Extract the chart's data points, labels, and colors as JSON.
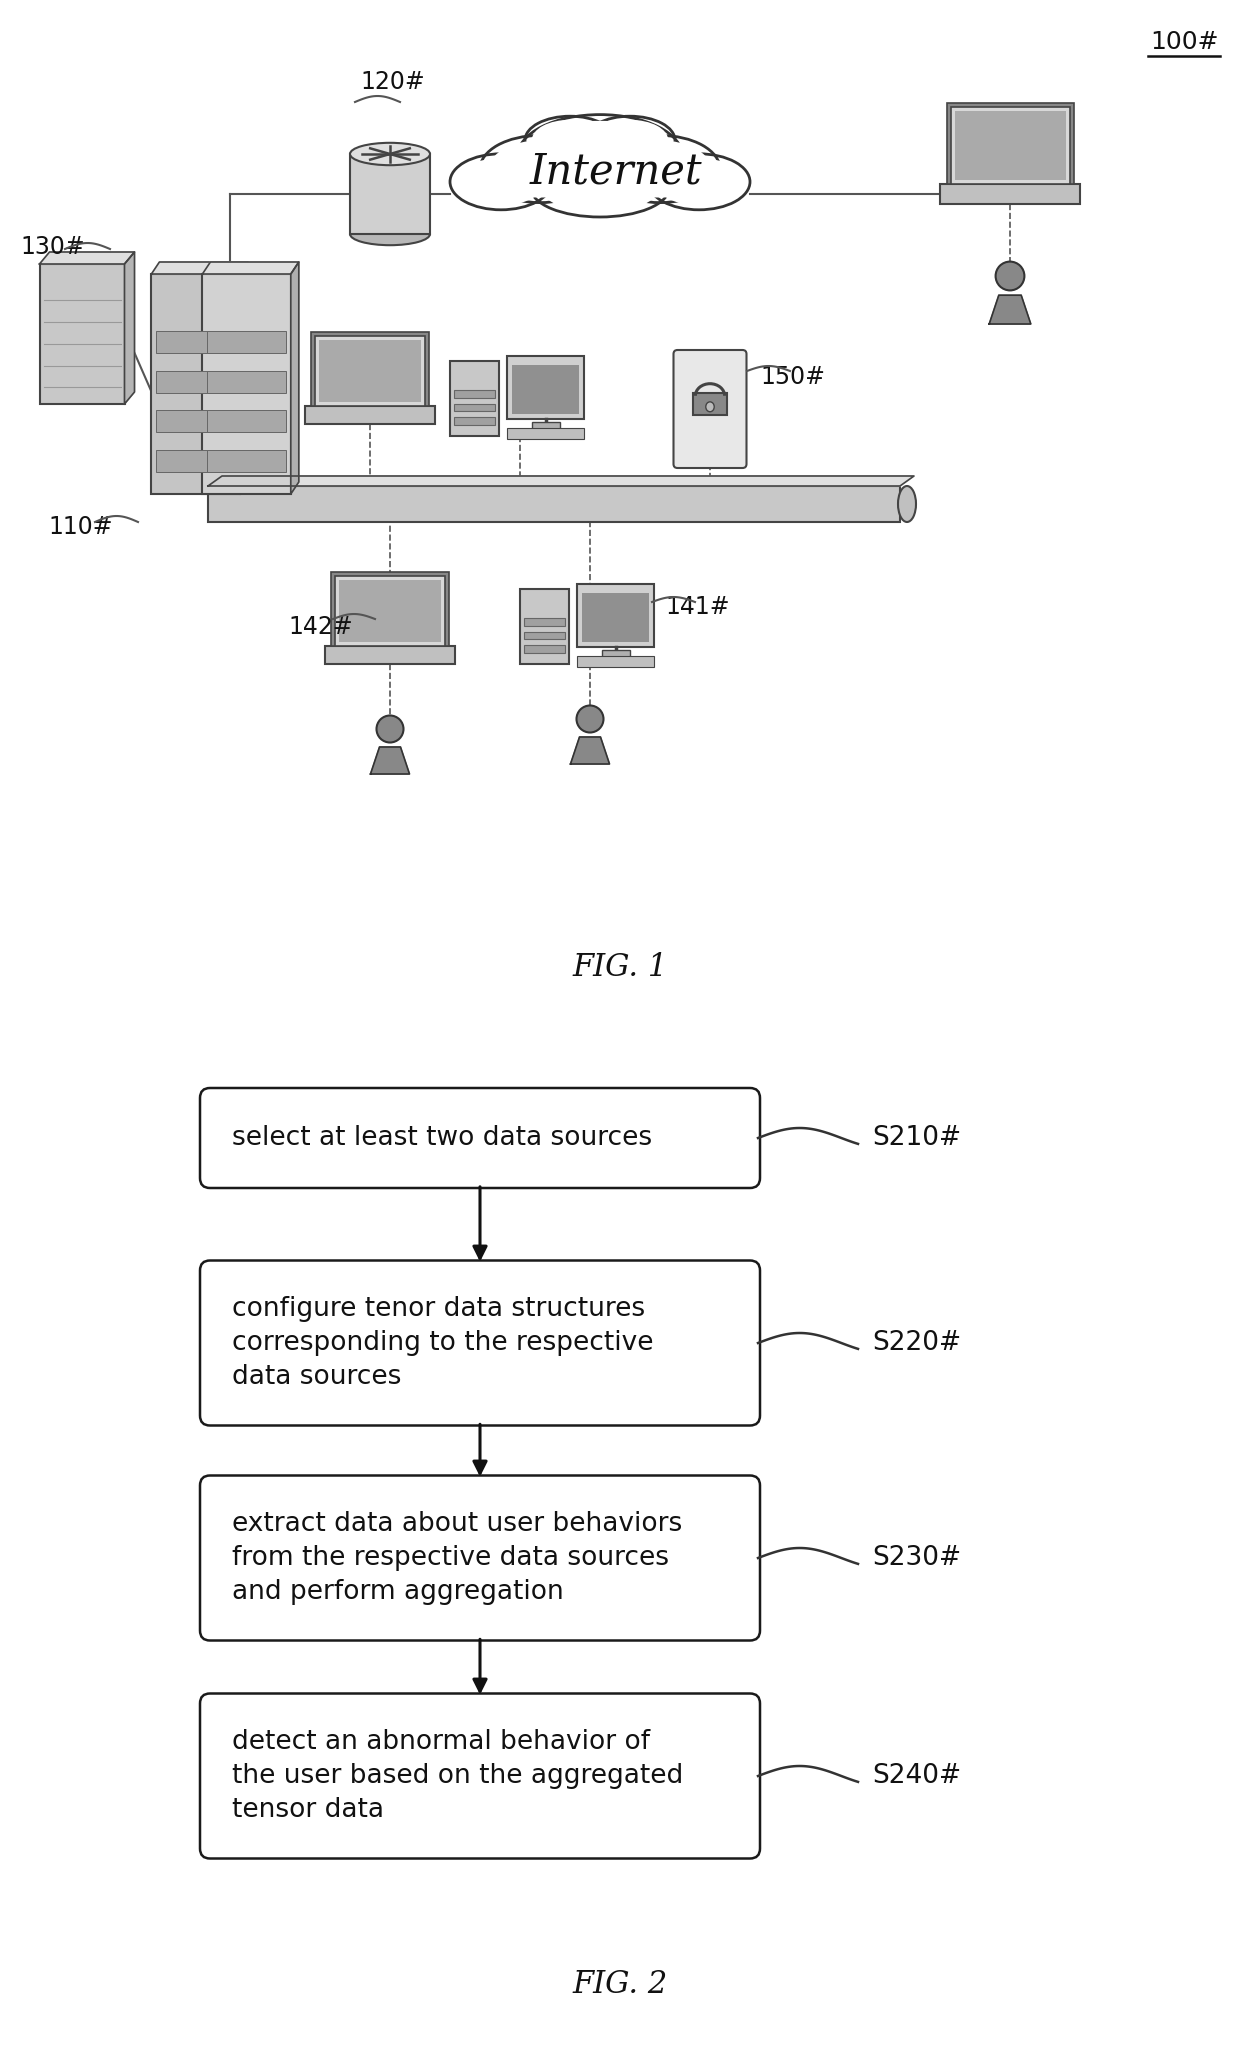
{
  "fig_label_1": "FIG. 1",
  "fig_label_2": "FIG. 2",
  "ref_100": "100#",
  "ref_110": "110#",
  "ref_120": "120#",
  "ref_130": "130#",
  "ref_141": "141#",
  "ref_142": "142#",
  "ref_150": "150#",
  "steps": [
    {
      "label": "S210#",
      "text": "select at least two data sources"
    },
    {
      "label": "S220#",
      "text": "configure tenor data structures\ncorresponding to the respective\ndata sources"
    },
    {
      "label": "S230#",
      "text": "extract data about user behaviors\nfrom the respective data sources\nand perform aggregation"
    },
    {
      "label": "S240#",
      "text": "detect an abnormal behavior of\nthe user based on the aggregated\ntensor data"
    }
  ],
  "bg_color": "#ffffff",
  "box_edge_color": "#1a1a1a",
  "box_fill_color": "#ffffff",
  "arrow_color": "#111111",
  "text_color": "#111111",
  "label_color": "#111111",
  "internet_text": "Internet",
  "device_fill": "#cccccc",
  "device_edge": "#444444",
  "device_dark": "#999999",
  "bus_fill": "#bbbbbb",
  "line_color": "#555555"
}
